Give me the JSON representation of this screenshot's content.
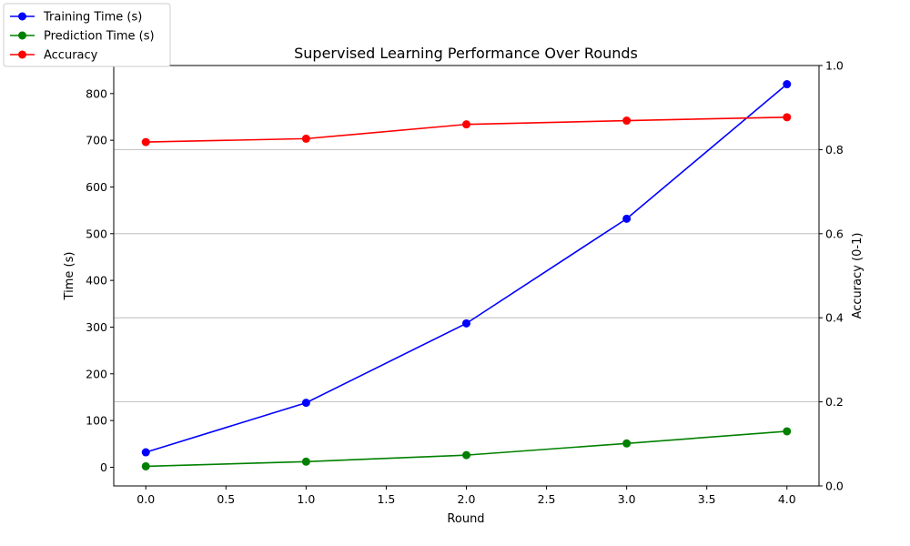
{
  "chart_data": {
    "type": "line",
    "title": "Supervised Learning Performance Over Rounds",
    "xlabel": "Round",
    "ylabel_left": "Time (s)",
    "ylabel_right": "Accuracy (0-1)",
    "x": [
      0,
      1,
      2,
      3,
      4
    ],
    "xlim": [
      -0.2,
      4.2
    ],
    "ylim_left": [
      -40,
      860
    ],
    "ylim_right": [
      0,
      1
    ],
    "x_ticks": [
      "0.0",
      "0.5",
      "1.0",
      "1.5",
      "2.0",
      "2.5",
      "3.0",
      "3.5",
      "4.0"
    ],
    "y_left_ticks": [
      "0",
      "100",
      "200",
      "300",
      "400",
      "500",
      "600",
      "700",
      "800"
    ],
    "y_right_ticks": [
      "0.0",
      "0.2",
      "0.4",
      "0.6",
      "0.8",
      "1.0"
    ],
    "grid": "horizontal (right axis)",
    "legend_position": "upper-left outside",
    "series": [
      {
        "name": "Training Time (s)",
        "axis": "left",
        "color": "#0000ff",
        "values": [
          32,
          138,
          308,
          532,
          820
        ]
      },
      {
        "name": "Prediction Time (s)",
        "axis": "left",
        "color": "#008000",
        "values": [
          2,
          12,
          26,
          51,
          77
        ]
      },
      {
        "name": "Accuracy",
        "axis": "right",
        "color": "#ff0000",
        "values": [
          0.818,
          0.826,
          0.86,
          0.869,
          0.877
        ]
      }
    ]
  }
}
